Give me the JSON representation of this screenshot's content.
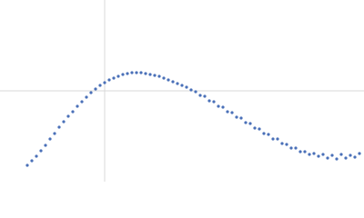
{
  "chart_data": {
    "type": "scatter",
    "x": [
      30,
      35,
      40,
      45,
      50,
      55,
      60,
      65,
      70,
      75,
      80,
      85,
      90,
      95,
      100,
      105,
      110,
      115,
      120,
      125,
      130,
      135,
      140,
      145,
      150,
      155,
      160,
      165,
      170,
      175,
      180,
      185,
      190,
      195,
      200,
      205,
      210,
      215,
      220,
      225,
      230,
      235,
      240,
      245,
      250,
      255,
      260,
      265,
      270,
      275,
      280,
      285,
      290,
      295,
      300,
      305,
      310,
      315,
      320,
      325,
      330,
      335,
      340,
      345,
      350,
      355,
      360,
      365,
      370,
      375,
      380,
      385,
      390,
      395
    ],
    "values": [
      18,
      23,
      28,
      34,
      40,
      47,
      53,
      60,
      66,
      72,
      77,
      83,
      88,
      93,
      98,
      102,
      106,
      109,
      112,
      114,
      116,
      118,
      119,
      120,
      120,
      120,
      119,
      118,
      117,
      116,
      114,
      112,
      110,
      108,
      106,
      104,
      101,
      99,
      95,
      94,
      89,
      88,
      83,
      82,
      77,
      76,
      71,
      70,
      65,
      64,
      59,
      58,
      53,
      52,
      47,
      47,
      42,
      41,
      37,
      37,
      33,
      33,
      30,
      31,
      28,
      30,
      26,
      29,
      25,
      30,
      26,
      29,
      27,
      31
    ],
    "color": "#4a70b8",
    "xlim": [
      0,
      400
    ],
    "ylim": [
      0,
      200
    ],
    "xticks": [
      115
    ],
    "yticks": [
      100
    ],
    "grid": true
  }
}
